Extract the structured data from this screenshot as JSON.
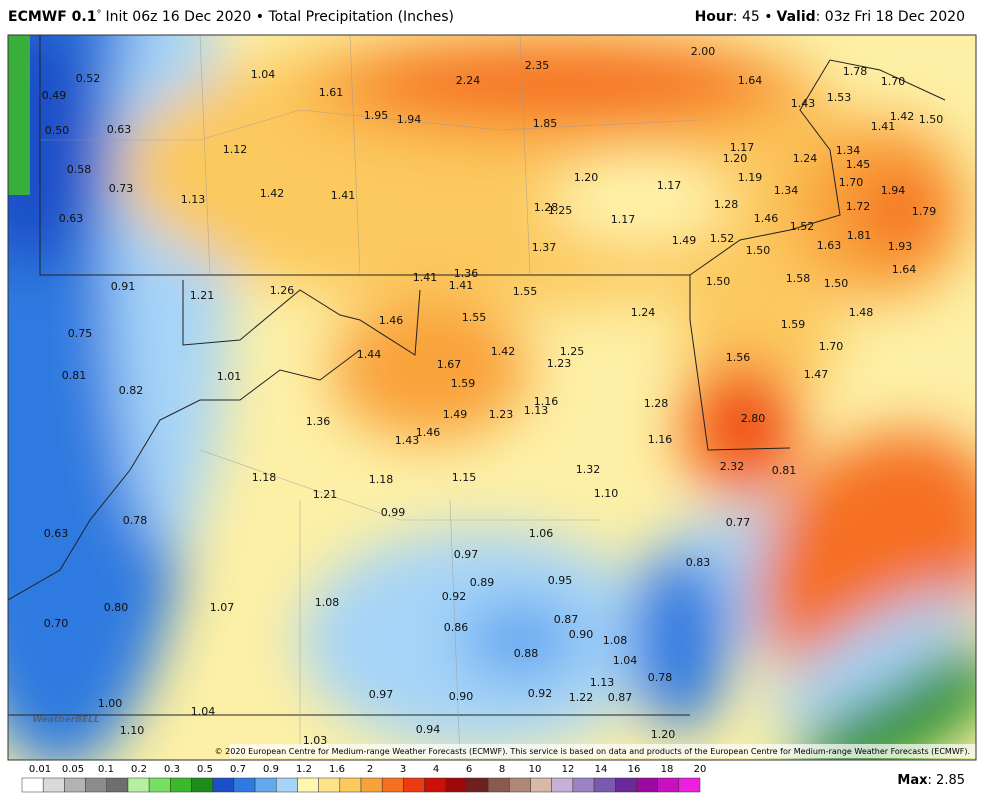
{
  "header": {
    "title_model": "ECMWF 0.1",
    "title_degree": "°",
    "title_rest": "Init 06z 16 Dec 2020 • Total Precipitation (Inches)",
    "hour_label": "Hour",
    "hour_rest": ": 45 •",
    "valid_label": "Valid",
    "valid_rest": ": 03z Fri 18 Dec 2020"
  },
  "map": {
    "labels": [
      "0.52",
      "0.49",
      "0.50",
      "0.63",
      "0.58",
      "0.73",
      "0.63",
      "1.04",
      "1.61",
      "1.95",
      "1.94",
      "2.24",
      "2.35",
      "2.00",
      "1.85",
      "1.64",
      "1.78",
      "1.70",
      "1.43",
      "1.53",
      "1.42",
      "1.50",
      "1.41",
      "1.12",
      "1.13",
      "1.42",
      "1.41",
      "1.20",
      "1.17",
      "1.17",
      "1.20",
      "1.24",
      "1.34",
      "1.45",
      "1.19",
      "1.34",
      "1.70",
      "1.94",
      "1.28",
      "1.25",
      "1.17",
      "1.28",
      "1.46",
      "1.52",
      "1.72",
      "1.79",
      "1.49",
      "1.52",
      "1.81",
      "1.93",
      "1.37",
      "1.50",
      "1.63",
      "1.64",
      "0.91",
      "1.21",
      "1.26",
      "1.41",
      "1.36",
      "1.41",
      "1.55",
      "1.50",
      "1.58",
      "1.50",
      "1.46",
      "1.55",
      "1.24",
      "1.59",
      "1.48",
      "0.75",
      "1.44",
      "1.42",
      "1.25",
      "1.70",
      "1.56",
      "0.81",
      "1.01",
      "1.67",
      "1.59",
      "1.23",
      "1.47",
      "0.82",
      "1.16",
      "1.28",
      "2.80",
      "1.36",
      "1.49",
      "1.23",
      "1.13",
      "1.43",
      "1.46",
      "1.16",
      "1.18",
      "1.18",
      "1.15",
      "1.32",
      "2.32",
      "0.81",
      "1.21",
      "1.10",
      "0.99",
      "0.78",
      "0.77",
      "1.06",
      "0.63",
      "0.97",
      "0.83",
      "0.89",
      "0.95",
      "0.92",
      "1.07",
      "1.08",
      "0.80",
      "0.87",
      "0.90",
      "1.08",
      "0.70",
      "0.86",
      "0.88",
      "1.04",
      "0.78",
      "1.13",
      "0.97",
      "0.90",
      "0.92",
      "1.22",
      "0.87",
      "1.00",
      "1.04",
      "1.10",
      "0.94",
      "1.03",
      "1.20"
    ],
    "credit": "© 2020 European Centre for Medium-range Weather Forecasts (ECMWF). This service is based on data and products of the European Centre for Medium-range Weather Forecasts (ECMWF).",
    "logo": "WeatherBELL"
  },
  "colorbar": {
    "labels": [
      "0.01",
      "0.05",
      "0.1",
      "0.2",
      "0.3",
      "0.5",
      "0.7",
      "0.9",
      "1.2",
      "1.6",
      "2",
      "3",
      "4",
      "6",
      "8",
      "10",
      "12",
      "14",
      "16",
      "18",
      "20"
    ],
    "colors": [
      "#ffffff",
      "#d9d9d9",
      "#b3b3b3",
      "#8c8c8c",
      "#6e6e6e",
      "#b4f0a0",
      "#78e060",
      "#3cb82c",
      "#1c8c1c",
      "#1a4fc8",
      "#2f7ae0",
      "#64a8f0",
      "#a6d4f8",
      "#fff7b0",
      "#fde48a",
      "#fcc95e",
      "#f9a23a",
      "#f57020",
      "#ee3a10",
      "#cc1008",
      "#9e0808",
      "#6e2020",
      "#8a5a50",
      "#b08878",
      "#d8b8a8",
      "#c6b0d8",
      "#9c84c4",
      "#7a5ab0",
      "#6a2a9a",
      "#9a0aa0",
      "#c810c0",
      "#ee20e0"
    ],
    "max_label": "Max",
    "max_rest": ": 2.85"
  }
}
